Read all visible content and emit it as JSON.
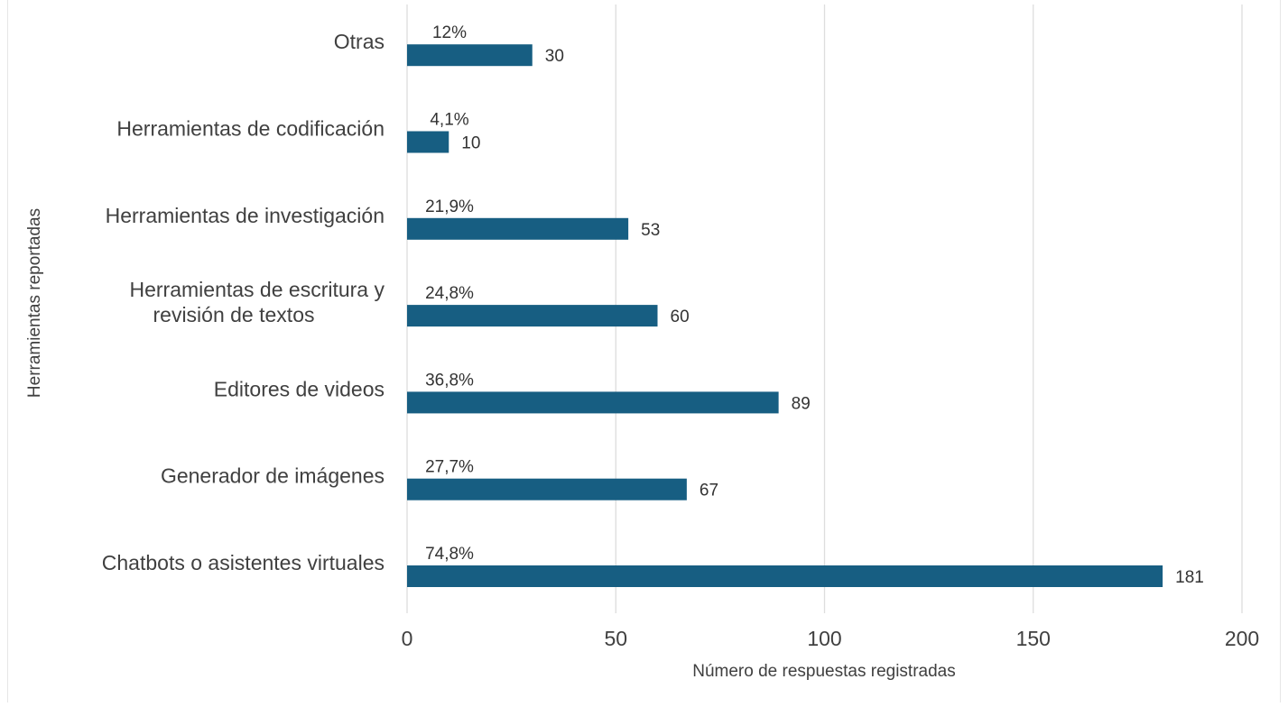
{
  "chart_data": {
    "type": "bar",
    "orientation": "horizontal",
    "categories": [
      "Chatbots o asistentes virtuales",
      "Generador de imágenes",
      "Editores de videos",
      "Herramientas de escritura y\nrevisión de textos",
      "Herramientas de investigación",
      "Herramientas de codificación",
      "Otras"
    ],
    "values": [
      181,
      67,
      89,
      60,
      53,
      10,
      30
    ],
    "value_labels": [
      "181",
      "67",
      "89",
      "60",
      "53",
      "10",
      "30"
    ],
    "percent_labels": [
      "74,8%",
      "27,7%",
      "36,8%",
      "24,8%",
      "21,9%",
      "4,1%",
      "12%"
    ],
    "xlabel": "Número de respuestas registradas",
    "ylabel": "Herramientas reportadas",
    "xlim": [
      0,
      200
    ],
    "xticks": [
      0,
      50,
      100,
      150,
      200
    ],
    "xtick_labels": [
      "0",
      "50",
      "100",
      "150",
      "200"
    ],
    "grid": "vertical",
    "legend": "none",
    "bar_color": "#175e82",
    "grid_color": "#dddddd"
  }
}
